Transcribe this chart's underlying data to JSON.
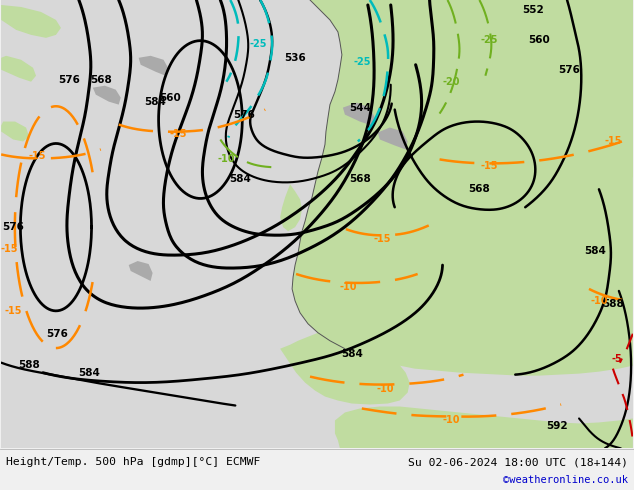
{
  "title_left": "Height/Temp. 500 hPa [gdmp][°C] ECMWF",
  "title_right": "Su 02-06-2024 18:00 UTC (18+144)",
  "credit": "©weatheronline.co.uk",
  "bottom_bar_color": "#f0f0f0",
  "figsize": [
    6.34,
    4.9
  ],
  "dpi": 100,
  "sea_color": "#d8d8d8",
  "land_color": "#c0dca0",
  "grey_land_color": "#aaaaaa",
  "contour_lw_thick": 2.2,
  "contour_lw_thin": 1.5,
  "orange_lw": 1.8,
  "cyan_lw": 1.8,
  "green_lw": 1.5,
  "red_lw": 1.5
}
